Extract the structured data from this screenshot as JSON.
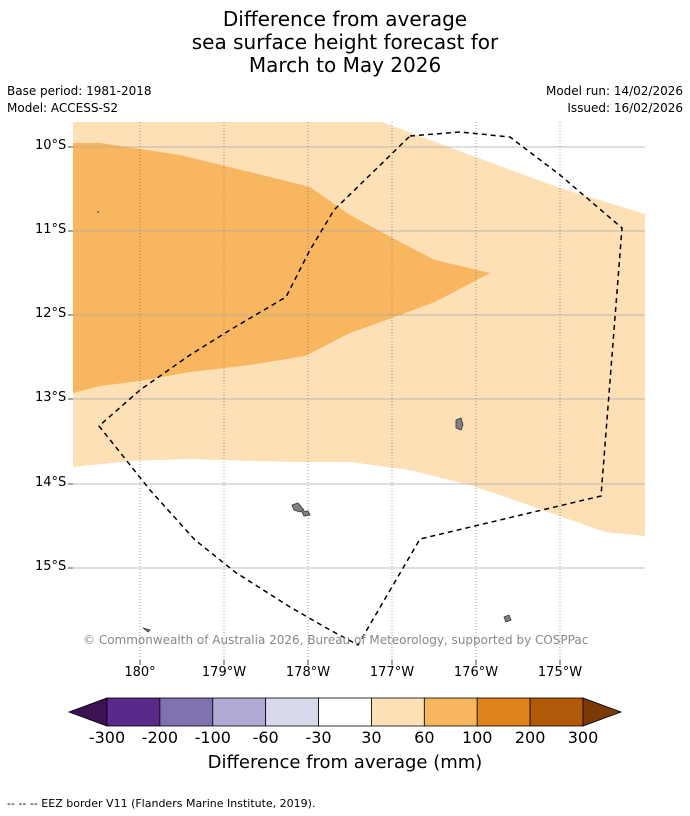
{
  "title": {
    "line1": "Difference from average",
    "line2": "sea surface height forecast for",
    "line3": "March to May 2026"
  },
  "meta_left": {
    "base_period": "Base period: 1981-2018",
    "model": "Model: ACCESS-S2"
  },
  "meta_right": {
    "model_run": "Model run: 14/02/2026",
    "issued": "Issued: 16/02/2026"
  },
  "map": {
    "lat_labels": [
      "10°S",
      "11°S",
      "12°S",
      "13°S",
      "14°S",
      "15°S"
    ],
    "lon_labels": [
      "180°",
      "179°W",
      "178°W",
      "177°W",
      "176°W",
      "175°W"
    ],
    "copyright": "© Commonwealth of Australia 2026, Bureau of Meteorology, supported by COSPPac",
    "colors": {
      "ocean_neutral": "#ffffff",
      "band_30_60": "#fde0b6",
      "band_60_100": "#f9b661",
      "land": "#808080",
      "eez_border": "#000000"
    }
  },
  "colorbar": {
    "ticks": [
      "-300",
      "-200",
      "-100",
      "-60",
      "-30",
      "30",
      "60",
      "100",
      "200",
      "300"
    ],
    "colors": [
      "#3d1254",
      "#5a2a8a",
      "#8072b0",
      "#b1aad4",
      "#d9d9ec",
      "#ffffff",
      "#fde0b6",
      "#f9b661",
      "#e0841b",
      "#b05908",
      "#7a3a06"
    ],
    "label": "Difference from average (mm)"
  },
  "footer": {
    "legend": "-- -- -- EEZ border V11 (Flanders Marine Institute, 2019)."
  }
}
